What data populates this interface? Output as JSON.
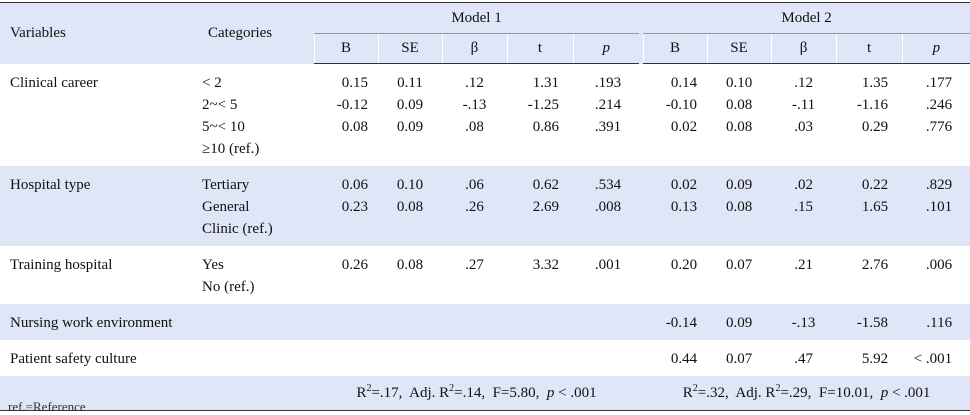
{
  "headers": {
    "variables": "Variables",
    "categories": "Categories",
    "model1": "Model 1",
    "model2": "Model 2",
    "sub": [
      "B",
      "SE",
      "β",
      "t",
      "p"
    ]
  },
  "rows": [
    {
      "variable": "Clinical career",
      "categories": [
        "< 2",
        "2~< 5",
        "5~< 10",
        "≥10 (ref.)"
      ],
      "m1": {
        "B": [
          "0.15",
          "-0.12",
          "0.08"
        ],
        "SE": [
          "0.11",
          "0.09",
          "0.09"
        ],
        "beta": [
          ".12",
          "-.13",
          ".08"
        ],
        "t": [
          "1.31",
          "-1.25",
          "0.86"
        ],
        "p": [
          ".193",
          ".214",
          ".391"
        ]
      },
      "m2": {
        "B": [
          "0.14",
          "-0.10",
          "0.02"
        ],
        "SE": [
          "0.10",
          "0.08",
          "0.08"
        ],
        "beta": [
          ".12",
          "-.11",
          ".03"
        ],
        "t": [
          "1.35",
          "-1.16",
          "0.29"
        ],
        "p": [
          ".177",
          ".246",
          ".776"
        ]
      }
    },
    {
      "variable": "Hospital type",
      "categories": [
        "Tertiary",
        "General",
        "Clinic (ref.)"
      ],
      "m1": {
        "B": [
          "0.06",
          "0.23"
        ],
        "SE": [
          "0.10",
          "0.08"
        ],
        "beta": [
          ".06",
          ".26"
        ],
        "t": [
          "0.62",
          "2.69"
        ],
        "p": [
          ".534",
          ".008"
        ]
      },
      "m2": {
        "B": [
          "0.02",
          "0.13"
        ],
        "SE": [
          "0.09",
          "0.08"
        ],
        "beta": [
          ".02",
          ".15"
        ],
        "t": [
          "0.22",
          "1.65"
        ],
        "p": [
          ".829",
          ".101"
        ]
      }
    },
    {
      "variable": "Training hospital",
      "categories": [
        "Yes",
        "No (ref.)"
      ],
      "m1": {
        "B": [
          "0.26"
        ],
        "SE": [
          "0.08"
        ],
        "beta": [
          ".27"
        ],
        "t": [
          "3.32"
        ],
        "p": [
          ".001"
        ]
      },
      "m2": {
        "B": [
          "0.20"
        ],
        "SE": [
          "0.07"
        ],
        "beta": [
          ".21"
        ],
        "t": [
          "2.76"
        ],
        "p": [
          ".006"
        ]
      }
    },
    {
      "variable": "Nursing work environment",
      "categories": [],
      "m1": {
        "B": [],
        "SE": [],
        "beta": [],
        "t": [],
        "p": []
      },
      "m2": {
        "B": [
          "-0.14"
        ],
        "SE": [
          "0.09"
        ],
        "beta": [
          "-.13"
        ],
        "t": [
          "-1.58"
        ],
        "p": [
          ".116"
        ]
      }
    },
    {
      "variable": "Patient safety culture",
      "categories": [],
      "m1": {
        "B": [],
        "SE": [],
        "beta": [],
        "t": [],
        "p": []
      },
      "m2": {
        "B": [
          "0.44"
        ],
        "SE": [
          "0.07"
        ],
        "beta": [
          ".47"
        ],
        "t": [
          "5.92"
        ],
        "p": [
          "< .001"
        ]
      }
    }
  ],
  "stats": {
    "m1": {
      "r2": "=.17,",
      "adj_label": "Adj. R",
      "adj_r2": "=.14,",
      "f": "F=5.80,",
      "p_label": "p",
      "p_value": "< .001"
    },
    "m2": {
      "r2": "=.32,",
      "adj_label": "Adj. R",
      "adj_r2": "=.29,",
      "f": "F=10.01,",
      "p_label": "p",
      "p_value": "< .001"
    }
  },
  "footnote": "ref.=Reference"
}
